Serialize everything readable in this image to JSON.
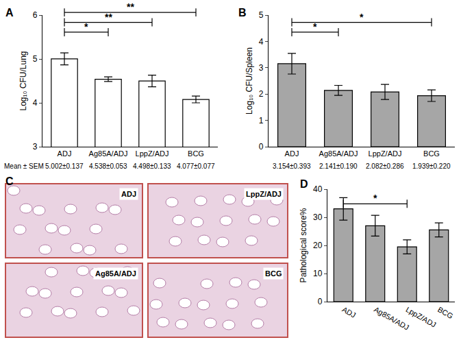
{
  "chart_data": [
    {
      "panel": "A",
      "type": "bar",
      "categories": [
        "ADJ",
        "Ag85A/ADJ",
        "LppZ/ADJ",
        "BCG"
      ],
      "values": [
        5.002,
        4.538,
        4.498,
        4.077
      ],
      "errors": [
        0.137,
        0.053,
        0.133,
        0.077
      ],
      "color": "#ffffff",
      "y_label": "Log₁₀ CFU/Lung",
      "ylim": [
        3,
        6
      ],
      "yticks": [
        3,
        4,
        5,
        6
      ],
      "summary_label": "Mean ± SEM",
      "summary_texts": [
        "5.002±0.137",
        "4.538±0.053",
        "4.498±0.133",
        "4.077±0.077"
      ],
      "significance": [
        {
          "from": "ADJ",
          "to": "Ag85A/ADJ",
          "label": "*"
        },
        {
          "from": "ADJ",
          "to": "LppZ/ADJ",
          "label": "**"
        },
        {
          "from": "ADJ",
          "to": "BCG",
          "label": "**"
        }
      ]
    },
    {
      "panel": "B",
      "type": "bar",
      "categories": [
        "ADJ",
        "Ag85A/ADJ",
        "LppZ/ADJ",
        "BCG"
      ],
      "values": [
        3.154,
        2.141,
        2.082,
        1.939
      ],
      "errors": [
        0.393,
        0.19,
        0.286,
        0.22
      ],
      "color": "#a6a6a6",
      "y_label": "Log₁₀ CFU/Spleen",
      "ylim": [
        0,
        5
      ],
      "yticks": [
        0,
        1,
        2,
        3,
        4,
        5
      ],
      "summary_texts": [
        "3.154±0.393",
        "2.141±0.190",
        "2.082±0.286",
        "1.939±0.220"
      ],
      "significance": [
        {
          "from": "ADJ",
          "to": "Ag85A/ADJ",
          "label": "*"
        },
        {
          "from": "ADJ",
          "to": "BCG",
          "label": "*"
        }
      ]
    },
    {
      "panel": "D",
      "type": "bar",
      "categories": [
        "ADJ",
        "Ag85A/ADJ",
        "LppZ/ADJ",
        "BCG"
      ],
      "values": [
        33,
        27,
        19.5,
        25.5
      ],
      "errors": [
        4,
        3.7,
        2.5,
        2.5
      ],
      "color": "#a6a6a6",
      "y_label": "Pathological score%",
      "ylim": [
        0,
        40
      ],
      "yticks": [
        0,
        10,
        20,
        30,
        40
      ],
      "significance": [
        {
          "from": "ADJ",
          "to": "LppZ/ADJ",
          "label": "*"
        }
      ]
    }
  ],
  "panel_c": {
    "panel": "C",
    "images": [
      {
        "label": "ADJ"
      },
      {
        "label": "LppZ/ADJ"
      },
      {
        "label": "Ag85A/ADJ"
      },
      {
        "label": "BCG"
      }
    ]
  }
}
